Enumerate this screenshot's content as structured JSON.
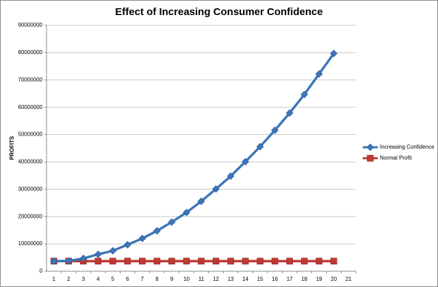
{
  "chart_data": {
    "type": "line",
    "title": "Effect of Increasing Consumer Confidence",
    "y_label": "PROFITS",
    "categories": [
      1,
      2,
      3,
      4,
      5,
      6,
      7,
      8,
      9,
      10,
      11,
      12,
      13,
      14,
      15,
      16,
      17,
      18,
      19,
      20,
      21
    ],
    "series": [
      {
        "name": "Increasing Confidence",
        "color": "#3c76b9",
        "marker": "diamond",
        "values": [
          3700000,
          3800000,
          4700000,
          6200000,
          7500000,
          9700000,
          12000000,
          14800000,
          18000000,
          21500000,
          25600000,
          30100000,
          34800000,
          40100000,
          45600000,
          51600000,
          57900000,
          64700000,
          72200000,
          79700000,
          null
        ]
      },
      {
        "name": "Normal Profit",
        "color": "#be3a33",
        "marker": "square",
        "values": [
          3700000,
          3700000,
          3700000,
          3700000,
          3700000,
          3700000,
          3700000,
          3700000,
          3700000,
          3700000,
          3700000,
          3700000,
          3700000,
          3700000,
          3700000,
          3700000,
          3700000,
          3700000,
          3700000,
          3700000,
          null
        ]
      }
    ],
    "ylim": [
      0,
      90000000
    ],
    "yticks": [
      0,
      10000000,
      20000000,
      30000000,
      40000000,
      50000000,
      60000000,
      70000000,
      80000000,
      90000000
    ],
    "grid": true,
    "legend": "right"
  }
}
